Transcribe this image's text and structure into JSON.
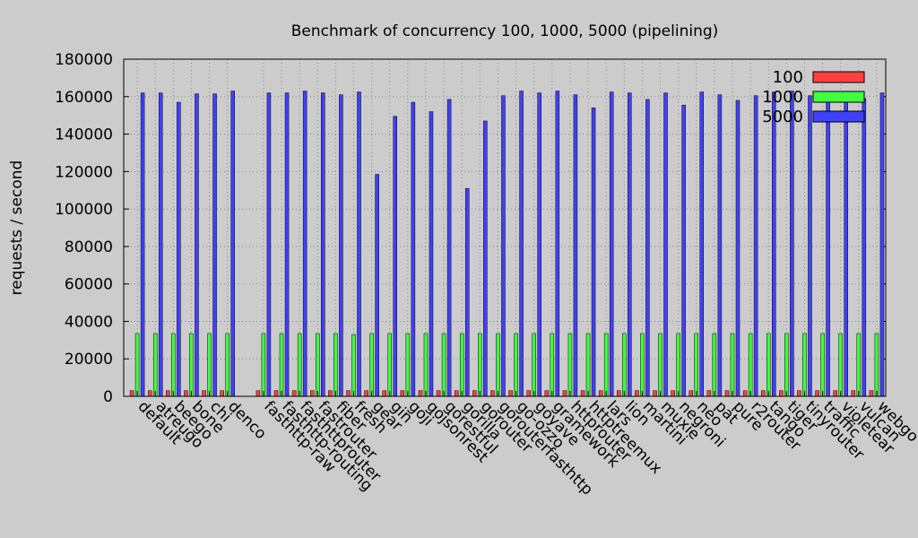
{
  "chart_data": {
    "type": "bar",
    "title": "Benchmark of concurrency 100, 1000, 5000 (pipelining)",
    "xlabel": "",
    "ylabel": "requests / second",
    "ylim": [
      0,
      180000
    ],
    "yticks": [
      "0",
      "20000",
      "40000",
      "60000",
      "80000",
      "100000",
      "120000",
      "140000",
      "160000",
      "180000"
    ],
    "grid": true,
    "legend_position": "top-right",
    "categories": [
      "default",
      "atreugo",
      "beego",
      "bone",
      "chi",
      "denco",
      "",
      "fasthttp-raw",
      "fasthttp-routing",
      "fasthttprouter",
      "fastrouter",
      "fiber",
      "fresh",
      "gear",
      "gin",
      "goji",
      "gojsonrest",
      "gorestful",
      "gorilla",
      "gorouter",
      "gorouterfasthttp",
      "go-ozzo",
      "goyave",
      "gramework",
      "httprouter",
      "httptreemux",
      "lars",
      "lion",
      "martini",
      "muxie",
      "negroni",
      "neo",
      "pat",
      "pure",
      "r2router",
      "tango",
      "tiger",
      "tinyrouter",
      "traffic",
      "violetear",
      "vulcan",
      "webgo"
    ],
    "series": [
      {
        "name": "100",
        "color": "#ff4040",
        "values": [
          3000,
          3000,
          3000,
          3000,
          3000,
          3000,
          null,
          3000,
          3000,
          3000,
          3000,
          3000,
          3000,
          3000,
          3000,
          3000,
          3000,
          3000,
          3000,
          3000,
          3000,
          3000,
          3000,
          3000,
          3000,
          3000,
          3000,
          3000,
          3000,
          3000,
          3000,
          3000,
          3000,
          3000,
          3000,
          3000,
          3000,
          3000,
          3000,
          3000,
          3000,
          3000
        ]
      },
      {
        "name": "1000",
        "color": "#40ff40",
        "values": [
          33500,
          33500,
          33500,
          33500,
          33500,
          33500,
          null,
          33500,
          33500,
          33500,
          33500,
          33500,
          33000,
          33500,
          33500,
          33500,
          33500,
          33500,
          33500,
          33500,
          33500,
          33500,
          33500,
          33500,
          33500,
          33500,
          33500,
          33500,
          33500,
          33500,
          33500,
          33500,
          33500,
          33500,
          33500,
          33500,
          33500,
          33500,
          33500,
          33500,
          33500,
          33500
        ]
      },
      {
        "name": "5000",
        "color": "#4040ff",
        "values": [
          162000,
          162000,
          157000,
          161500,
          161500,
          163000,
          null,
          162000,
          162000,
          163000,
          162000,
          161000,
          162500,
          118500,
          149500,
          157000,
          152000,
          158500,
          111000,
          147000,
          160500,
          163000,
          162000,
          163000,
          161000,
          154000,
          162500,
          162000,
          158500,
          162000,
          155500,
          162500,
          161000,
          158000,
          160500,
          162500,
          163000,
          160500,
          160500,
          159000,
          159000,
          162000
        ]
      }
    ]
  }
}
